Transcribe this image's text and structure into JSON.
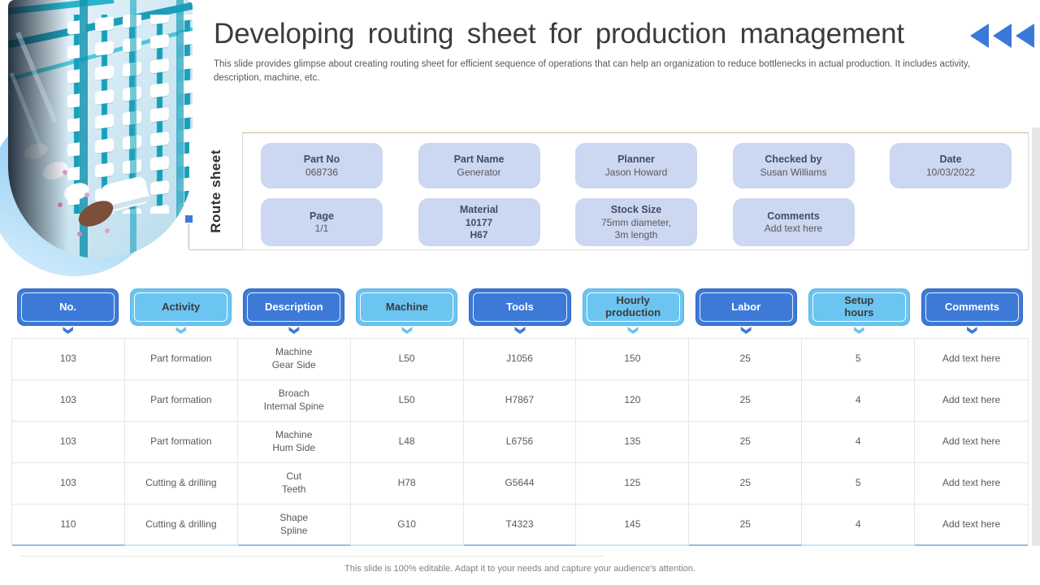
{
  "slide": {
    "title": "Developing routing sheet for production management",
    "subtitle": "This slide provides glimpse about creating routing sheet for efficient sequence of operations that can help an organization to reduce bottlenecks in actual production. It includes activity, description, machine, etc.",
    "footer": "This slide is 100% editable. Adapt it to your needs and capture your audience's attention."
  },
  "route_sheet": {
    "label": "Route sheet",
    "rows": [
      [
        {
          "label": "Part No",
          "value": "068736"
        },
        {
          "label": "Part Name",
          "value": "Generator"
        },
        {
          "label": "Planner",
          "value": "Jason Howard"
        },
        {
          "label": "Checked by",
          "value": "Susan Williams"
        },
        {
          "label": "Date",
          "value": "10/03/2022"
        }
      ],
      [
        {
          "label": "Page",
          "value": "1/1"
        },
        {
          "label": "Material",
          "value": "10177\nH67",
          "strong": true
        },
        {
          "label": "Stock Size",
          "value": "75mm diameter,\n3m length"
        },
        {
          "label": "Comments",
          "value": "Add text here"
        }
      ]
    ]
  },
  "table": {
    "columns": [
      {
        "label": "No.",
        "tone": "dark"
      },
      {
        "label": "Activity",
        "tone": "light"
      },
      {
        "label": "Description",
        "tone": "dark"
      },
      {
        "label": "Machine",
        "tone": "light"
      },
      {
        "label": "Tools",
        "tone": "dark"
      },
      {
        "label": "Hourly\nproduction",
        "tone": "light"
      },
      {
        "label": "Labor",
        "tone": "dark"
      },
      {
        "label": "Setup\nhours",
        "tone": "light"
      },
      {
        "label": "Comments",
        "tone": "dark"
      }
    ],
    "rows": [
      [
        "103",
        "Part formation",
        "Machine\nGear Side",
        "L50",
        "J1056",
        "150",
        "25",
        "5",
        "Add text here"
      ],
      [
        "103",
        "Part formation",
        "Broach\nInternal Spine",
        "L50",
        "H7867",
        "120",
        "25",
        "4",
        "Add text here"
      ],
      [
        "103",
        "Part formation",
        "Machine\nHum Side",
        "L48",
        "L6756",
        "135",
        "25",
        "4",
        "Add text here"
      ],
      [
        "103",
        "Cutting & drilling",
        "Cut\nTeeth",
        "H78",
        "G5644",
        "125",
        "25",
        "5",
        "Add text here"
      ],
      [
        "110",
        "Cutting & drilling",
        "Shape\nSpline",
        "G10",
        "T4323",
        "145",
        "25",
        "4",
        "Add text here"
      ]
    ]
  },
  "decor": {
    "back_chevrons": 3,
    "colors": {
      "dark_blue": "#3d7ad8",
      "light_blue": "#6cc4f1",
      "pill_bg": "#ccd7f1",
      "accent": "#3b79d9"
    }
  }
}
